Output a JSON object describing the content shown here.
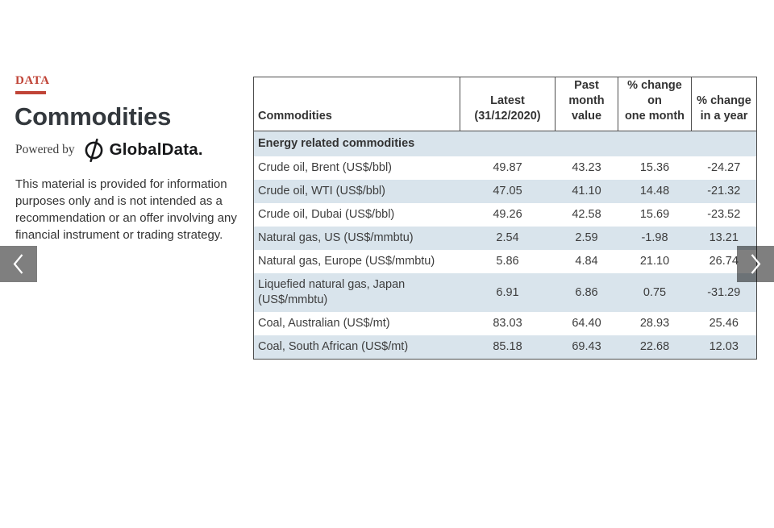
{
  "sidebar": {
    "kicker": "DATA",
    "title": "Commodities",
    "powered_by_label": "Powered by",
    "brand": "GlobalData.",
    "disclaimer": "This material is provided for information purposes only and is not intended as a recommendation or an offer involving any financial instrument or trading strategy."
  },
  "nav": {
    "prev_icon": "chevron-left",
    "next_icon": "chevron-right"
  },
  "colors": {
    "accent_red": "#c04437",
    "stripe_blue": "#d9e4ec",
    "table_border": "#4d4d4d",
    "arrow_overlay": "rgba(0,0,0,0.5)",
    "text_dark": "#3d3d3d"
  },
  "chart_data": {
    "type": "table",
    "title": "Commodities",
    "columns": [
      "Commodities",
      "Latest\n(31/12/2020)",
      "Past\nmonth\nvalue",
      "% change on\none month",
      "% change\nin a year"
    ],
    "section_header": "Energy related commodities",
    "rows": [
      {
        "name": "Crude oil, Brent (US$/bbl)",
        "latest": "49.87",
        "past_month": "43.23",
        "pct_month": "15.36",
        "pct_year": "-24.27"
      },
      {
        "name": "Crude oil, WTI (US$/bbl)",
        "latest": "47.05",
        "past_month": "41.10",
        "pct_month": "14.48",
        "pct_year": "-21.32"
      },
      {
        "name": "Crude oil, Dubai (US$/bbl)",
        "latest": "49.26",
        "past_month": "42.58",
        "pct_month": "15.69",
        "pct_year": "-23.52"
      },
      {
        "name": "Natural gas, US (US$/mmbtu)",
        "latest": "2.54",
        "past_month": "2.59",
        "pct_month": "-1.98",
        "pct_year": "13.21"
      },
      {
        "name": "Natural gas, Europe (US$/mmbtu)",
        "latest": "5.86",
        "past_month": "4.84",
        "pct_month": "21.10",
        "pct_year": "26.74"
      },
      {
        "name": "Liquefied natural gas, Japan (US$/mmbtu)",
        "latest": "6.91",
        "past_month": "6.86",
        "pct_month": "0.75",
        "pct_year": "-31.29"
      },
      {
        "name": "Coal, Australian (US$/mt)",
        "latest": "83.03",
        "past_month": "64.40",
        "pct_month": "28.93",
        "pct_year": "25.46"
      },
      {
        "name": "Coal, South African (US$/mt)",
        "latest": "85.18",
        "past_month": "69.43",
        "pct_month": "22.68",
        "pct_year": "12.03"
      }
    ]
  }
}
